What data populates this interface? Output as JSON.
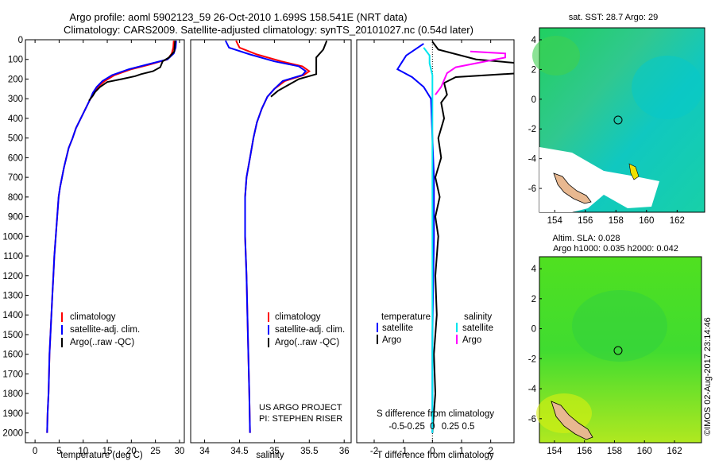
{
  "titles": {
    "line1": "Argo profile: aoml 5902123_59 26-Oct-2010 1.699S 158.541E (NRT data)",
    "line2": "Climatology: CARS2009. Satellite-adjusted climatology: synTS_20101027.nc (0.54d later)"
  },
  "credits": {
    "project": "US ARGO PROJECT",
    "pi": "PI: STEPHEN RISER",
    "stamp": "©IMOS 02-Aug-2017 23:14:46"
  },
  "colors": {
    "clim": "#ff0000",
    "sat": "#0000ff",
    "argo": "#000000",
    "sal_sat": "#00e5ee",
    "sal_argo": "#ff00ff"
  },
  "chart_data": [
    {
      "type": "line",
      "id": "temperature",
      "xlabel": "temperature (deg C)",
      "xlim": [
        -2,
        31
      ],
      "ylim": [
        2050,
        0
      ],
      "xticks": [
        0,
        5,
        10,
        15,
        20,
        25,
        30
      ],
      "yticks": [
        0,
        100,
        200,
        300,
        400,
        500,
        600,
        700,
        800,
        900,
        1000,
        1100,
        1200,
        1300,
        1400,
        1500,
        1600,
        1700,
        1800,
        1900,
        2000
      ],
      "legend": [
        "climatology",
        "satellite-adj. clim.",
        "Argo(..raw -QC)"
      ],
      "series": [
        {
          "name": "climatology",
          "color": "#ff0000",
          "points": [
            [
              28.8,
              5
            ],
            [
              28.7,
              40
            ],
            [
              28.4,
              70
            ],
            [
              27.5,
              100
            ],
            [
              24,
              125
            ],
            [
              20,
              150
            ],
            [
              16.5,
              180
            ],
            [
              14.5,
              210
            ],
            [
              13,
              240
            ],
            [
              12.2,
              270
            ],
            [
              11.5,
              300
            ],
            [
              10.5,
              350
            ],
            [
              9.5,
              400
            ],
            [
              8.5,
              450
            ],
            [
              7.8,
              500
            ],
            [
              7,
              550
            ],
            [
              6.5,
              600
            ],
            [
              6,
              650
            ],
            [
              5.6,
              700
            ],
            [
              5.2,
              750
            ],
            [
              4.9,
              800
            ],
            [
              4.6,
              900
            ],
            [
              4.3,
              1000
            ],
            [
              4,
              1100
            ],
            [
              3.8,
              1200
            ],
            [
              3.6,
              1300
            ],
            [
              3.4,
              1400
            ],
            [
              3.2,
              1500
            ],
            [
              3,
              1600
            ],
            [
              2.9,
              1700
            ],
            [
              2.8,
              1800
            ],
            [
              2.6,
              1900
            ],
            [
              2.5,
              2000
            ]
          ]
        },
        {
          "name": "satellite-adj. clim.",
          "color": "#0000ff",
          "points": [
            [
              29.3,
              5
            ],
            [
              29.2,
              40
            ],
            [
              28.8,
              70
            ],
            [
              27.5,
              100
            ],
            [
              23.5,
              125
            ],
            [
              19.5,
              150
            ],
            [
              16,
              180
            ],
            [
              14,
              210
            ],
            [
              12.8,
              240
            ],
            [
              12,
              270
            ],
            [
              11.5,
              300
            ],
            [
              10.5,
              350
            ],
            [
              9.5,
              400
            ],
            [
              8.5,
              450
            ],
            [
              7.8,
              500
            ],
            [
              7,
              550
            ],
            [
              6.5,
              600
            ],
            [
              6,
              650
            ],
            [
              5.6,
              700
            ],
            [
              5.2,
              750
            ],
            [
              4.9,
              800
            ],
            [
              4.6,
              900
            ],
            [
              4.3,
              1000
            ],
            [
              4,
              1100
            ],
            [
              3.8,
              1200
            ],
            [
              3.6,
              1300
            ],
            [
              3.4,
              1400
            ],
            [
              3.2,
              1500
            ],
            [
              3,
              1600
            ],
            [
              2.9,
              1700
            ],
            [
              2.8,
              1800
            ],
            [
              2.6,
              1900
            ],
            [
              2.5,
              2000
            ]
          ]
        },
        {
          "name": "Argo(..raw -QC)",
          "color": "#000000",
          "points": [
            [
              29.1,
              5
            ],
            [
              28.9,
              60
            ],
            [
              27.8,
              90
            ],
            [
              26.5,
              110
            ],
            [
              26,
              140
            ],
            [
              24.5,
              160
            ],
            [
              22,
              175
            ],
            [
              20.8,
              185
            ],
            [
              18,
              200
            ],
            [
              15,
              215
            ],
            [
              13.5,
              240
            ],
            [
              12.5,
              265
            ],
            [
              12,
              285
            ],
            [
              11.2,
              310
            ]
          ]
        }
      ]
    },
    {
      "type": "line",
      "id": "salinity",
      "xlabel": "salinity",
      "xlim": [
        33.8,
        36.1
      ],
      "ylim": [
        2050,
        0
      ],
      "xticks": [
        34,
        34.5,
        35,
        35.5,
        36
      ],
      "legend": [
        "climatology",
        "satellite-adj. clim.",
        "Argo(..raw -QC)"
      ],
      "series": [
        {
          "name": "climatology",
          "color": "#ff0000",
          "points": [
            [
              34.45,
              5
            ],
            [
              34.5,
              40
            ],
            [
              34.75,
              75
            ],
            [
              35.1,
              110
            ],
            [
              35.4,
              135
            ],
            [
              35.5,
              160
            ],
            [
              35.42,
              180
            ],
            [
              35.15,
              210
            ],
            [
              35.0,
              250
            ],
            [
              34.9,
              290
            ],
            [
              34.82,
              350
            ],
            [
              34.75,
              420
            ],
            [
              34.7,
              500
            ],
            [
              34.65,
              600
            ],
            [
              34.6,
              700
            ],
            [
              34.58,
              800
            ],
            [
              34.58,
              1000
            ],
            [
              34.6,
              1200
            ],
            [
              34.62,
              1500
            ],
            [
              34.64,
              1800
            ],
            [
              34.65,
              2000
            ]
          ]
        },
        {
          "name": "satellite-adj. clim.",
          "color": "#0000ff",
          "points": [
            [
              34.3,
              5
            ],
            [
              34.35,
              40
            ],
            [
              34.65,
              75
            ],
            [
              35.0,
              110
            ],
            [
              35.35,
              135
            ],
            [
              35.45,
              160
            ],
            [
              35.4,
              180
            ],
            [
              35.12,
              210
            ],
            [
              35.0,
              250
            ],
            [
              34.9,
              290
            ],
            [
              34.82,
              350
            ],
            [
              34.75,
              420
            ],
            [
              34.7,
              500
            ],
            [
              34.65,
              600
            ],
            [
              34.6,
              700
            ],
            [
              34.58,
              800
            ],
            [
              34.58,
              1000
            ],
            [
              34.6,
              1200
            ],
            [
              34.62,
              1500
            ],
            [
              34.64,
              1800
            ],
            [
              34.65,
              2000
            ]
          ]
        },
        {
          "name": "Argo(..raw -QC)",
          "color": "#000000",
          "points": [
            [
              35.75,
              5
            ],
            [
              35.7,
              50
            ],
            [
              35.6,
              90
            ],
            [
              35.6,
              140
            ],
            [
              35.6,
              175
            ],
            [
              35.5,
              185
            ],
            [
              35.35,
              200
            ],
            [
              35.2,
              230
            ],
            [
              35.05,
              260
            ],
            [
              34.95,
              290
            ]
          ]
        }
      ]
    },
    {
      "type": "line",
      "id": "difference",
      "xlabel": "T difference from climatology",
      "xlabel_top": "S difference from climatology",
      "xlim": [
        -2.6,
        2.8
      ],
      "ylim": [
        2050,
        0
      ],
      "xticks": [
        -2,
        -1,
        0,
        1,
        2
      ],
      "sticks": [
        -0.5,
        -0.25,
        0,
        0.25,
        0.5
      ],
      "legend_headers": [
        "temperature",
        "salinity"
      ],
      "legend": [
        "satellite",
        "Argo",
        "satellite",
        "Argo"
      ],
      "series": [
        {
          "name": "T satellite",
          "color": "#0000ff",
          "points": [
            [
              -0.3,
              20
            ],
            [
              -0.9,
              80
            ],
            [
              -1.2,
              150
            ],
            [
              -0.7,
              190
            ],
            [
              -0.3,
              240
            ],
            [
              -0.05,
              300
            ],
            [
              0,
              500
            ],
            [
              0.05,
              700
            ],
            [
              0.05,
              1000
            ],
            [
              0,
              1500
            ],
            [
              0,
              2000
            ]
          ]
        },
        {
          "name": "T Argo",
          "color": "#000000",
          "points": [
            [
              0,
              10
            ],
            [
              0.2,
              50
            ],
            [
              1.5,
              100
            ],
            [
              3,
              120
            ],
            [
              3,
              170
            ],
            [
              0.8,
              190
            ],
            [
              0.4,
              220
            ],
            [
              0.5,
              280
            ],
            [
              0.3,
              320
            ],
            [
              0.4,
              400
            ],
            [
              0.2,
              500
            ],
            [
              0.3,
              600
            ],
            [
              0.1,
              700
            ],
            [
              0.25,
              800
            ],
            [
              0.1,
              900
            ],
            [
              0.2,
              1000
            ],
            [
              0.1,
              1200
            ],
            [
              0.15,
              1400
            ],
            [
              0.05,
              1600
            ],
            [
              0.1,
              1800
            ],
            [
              0,
              2000
            ]
          ]
        },
        {
          "name": "S satellite",
          "color": "#00e5ee",
          "points": [
            [
              -0.3,
              40
            ],
            [
              -0.1,
              80
            ],
            [
              -0.1,
              120
            ],
            [
              0,
              180
            ],
            [
              0,
              300
            ],
            [
              0,
              500
            ],
            [
              0,
              1000
            ],
            [
              0,
              2000
            ]
          ]
        },
        {
          "name": "S Argo",
          "color": "#ff00ff",
          "points": [
            [
              1.3,
              60
            ],
            [
              2.5,
              70
            ],
            [
              2.5,
              90
            ],
            [
              0.8,
              140
            ],
            [
              0.5,
              170
            ],
            [
              0.3,
              240
            ],
            [
              0.1,
              280
            ]
          ]
        }
      ]
    },
    {
      "type": "heatmap",
      "id": "sst_map",
      "title": "sat. SST: 28.7 Argo: 29",
      "xlim": [
        153,
        163.8
      ],
      "ylim": [
        -7.6,
        4.8
      ],
      "xticks": [
        154,
        156,
        158,
        160,
        162
      ],
      "yticks": [
        4,
        2,
        0,
        -2,
        -4,
        -6
      ],
      "marker": [
        158.541,
        -1.699
      ]
    },
    {
      "type": "heatmap",
      "id": "sla_map",
      "title": "Altim. SLA: 0.028",
      "subtitle": "Argo h1000: 0.035 h2000: 0.042",
      "xlim": [
        153,
        163.8
      ],
      "ylim": [
        -7.6,
        4.8
      ],
      "xticks": [
        154,
        156,
        158,
        160,
        162
      ],
      "yticks": [
        4,
        2,
        0,
        -2,
        -4,
        -6
      ],
      "marker": [
        158.541,
        -1.699
      ]
    }
  ]
}
